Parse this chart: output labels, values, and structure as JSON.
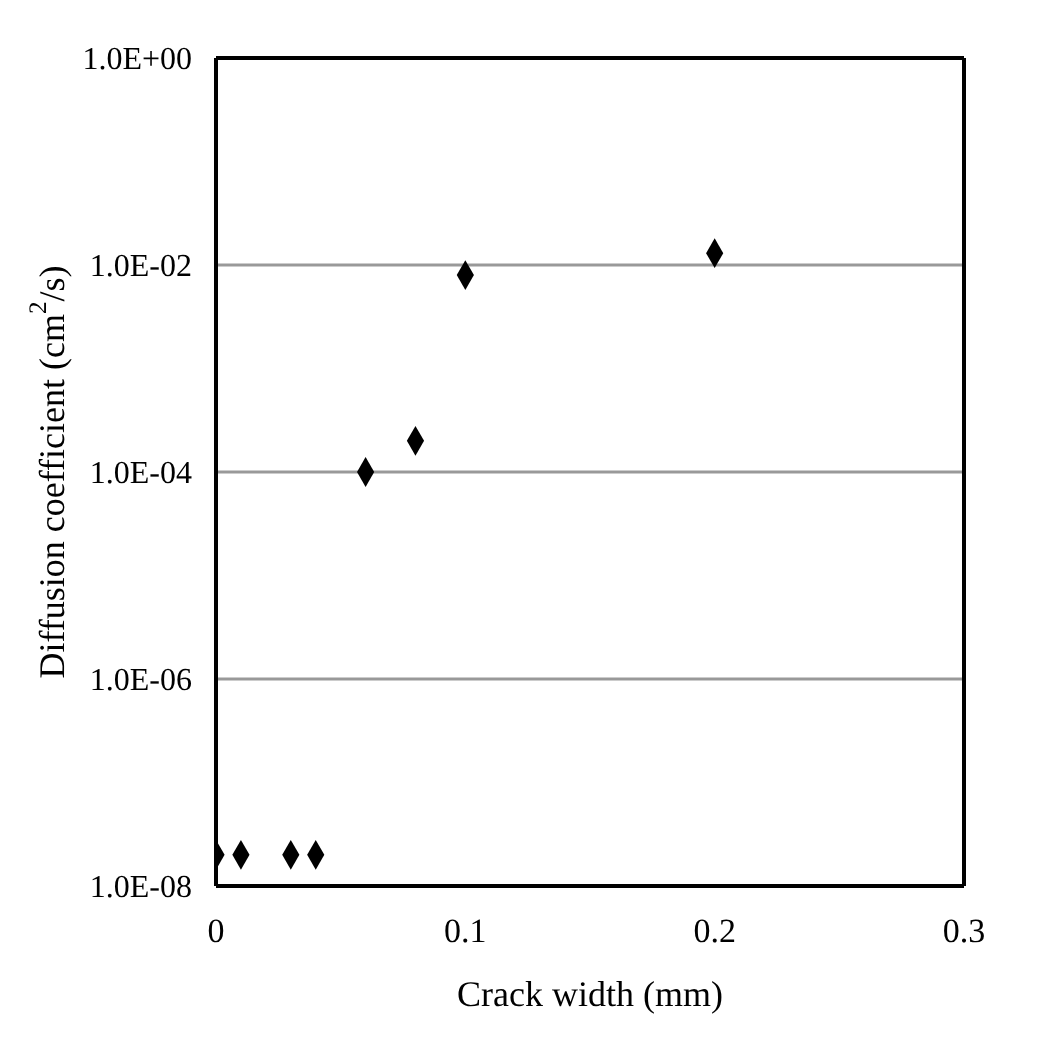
{
  "chart_data": {
    "type": "scatter",
    "xlabel": "Crack width (mm)",
    "ylabel": "Diffusion coefficient (cm$^{2}$/s)",
    "x": [
      0,
      0.01,
      0.03,
      0.04,
      0.06,
      0.08,
      0.1,
      0.2
    ],
    "values": [
      2e-08,
      2e-08,
      2e-08,
      2e-08,
      0.0001,
      0.0002,
      0.008,
      0.013
    ],
    "color": "#000000",
    "marker": "diamond",
    "log": "y",
    "grid": "y",
    "xlim": [
      0,
      0.3
    ],
    "xticks": [
      0,
      0.1,
      0.2,
      0.3
    ],
    "ylim": [
      1e-08,
      1
    ],
    "yticks": [
      {
        "value": 1e-08,
        "label": "1.0E-08"
      },
      {
        "value": 1e-06,
        "label": "1.0E-06"
      },
      {
        "value": 0.0001,
        "label": "1.0E-04"
      },
      {
        "value": 0.01,
        "label": "1.0E-02"
      },
      {
        "value": 1,
        "label": "1.0E+00"
      }
    ]
  }
}
